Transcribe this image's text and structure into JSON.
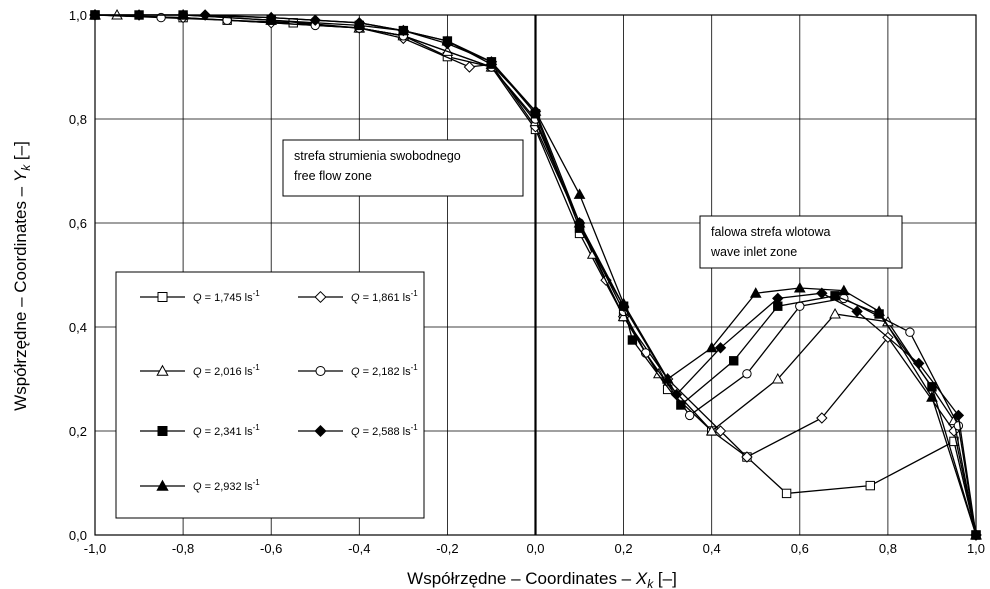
{
  "chart_data": {
    "type": "line",
    "xlabel": {
      "main": "Współrzędne – Coordinates – ",
      "var": "X",
      "sub": "k",
      "unit": "  [–]"
    },
    "ylabel": {
      "main": "Współrzędne – Coordinates – ",
      "var": "Y",
      "sub": "k",
      "unit": "  [–]"
    },
    "xlim": [
      -1.0,
      1.0
    ],
    "ylim": [
      0.0,
      1.0
    ],
    "xticks": [
      -1.0,
      -0.8,
      -0.6,
      -0.4,
      -0.2,
      0.0,
      0.2,
      0.4,
      0.6,
      0.8,
      1.0
    ],
    "yticks": [
      0.0,
      0.2,
      0.4,
      0.6,
      0.8,
      1.0
    ],
    "xtick_labels": [
      "-1,0",
      "-0,8",
      "-0,6",
      "-0,4",
      "-0,2",
      "0,0",
      "0,2",
      "0,4",
      "0,6",
      "0,8",
      "1,0"
    ],
    "ytick_labels": [
      "0,0",
      "0,2",
      "0,4",
      "0,6",
      "0,8",
      "1,0"
    ],
    "grid": true,
    "annotations": [
      {
        "lines": [
          "strefa  strumienia swobodnego",
          "free flow zone"
        ]
      },
      {
        "lines": [
          "falowa strefa wlotowa",
          "wave inlet zone"
        ]
      }
    ],
    "legend_placement": "lower-left",
    "series": [
      {
        "name": "Q = 1,745 ls-1",
        "label_var": "Q",
        "label_val": " = 1,745 ls",
        "label_sup": "-1",
        "marker": "square-open",
        "x": [
          -1.0,
          -0.8,
          -0.7,
          -0.55,
          -0.4,
          -0.3,
          -0.2,
          -0.1,
          0.0,
          0.1,
          0.2,
          0.3,
          0.4,
          0.48,
          0.57,
          0.76,
          0.95,
          1.0
        ],
        "y": [
          1.0,
          0.995,
          0.99,
          0.985,
          0.975,
          0.96,
          0.92,
          0.9,
          0.78,
          0.58,
          0.42,
          0.28,
          0.2,
          0.15,
          0.08,
          0.095,
          0.18,
          0.0
        ]
      },
      {
        "name": "Q = 1,861 ls-1",
        "label_var": "Q",
        "label_val": " = 1,861 ls",
        "label_sup": "-1",
        "marker": "diamond-open",
        "x": [
          -1.0,
          -0.8,
          -0.6,
          -0.4,
          -0.3,
          -0.15,
          -0.1,
          0.0,
          0.1,
          0.16,
          0.2,
          0.3,
          0.42,
          0.48,
          0.65,
          0.8,
          0.95,
          1.0
        ],
        "y": [
          1.0,
          0.995,
          0.985,
          0.975,
          0.955,
          0.9,
          0.905,
          0.785,
          0.6,
          0.49,
          0.42,
          0.3,
          0.2,
          0.15,
          0.225,
          0.38,
          0.2,
          0.0
        ]
      },
      {
        "name": "Q = 2,016 ls-1",
        "label_var": "Q",
        "label_val": " = 2,016 ls",
        "label_sup": "-1",
        "marker": "triangle-open",
        "x": [
          -1.0,
          -0.95,
          -0.8,
          -0.6,
          -0.4,
          -0.3,
          -0.2,
          -0.1,
          0.0,
          0.1,
          0.13,
          0.2,
          0.28,
          0.4,
          0.55,
          0.68,
          0.8,
          0.95,
          1.0
        ],
        "y": [
          1.0,
          1.0,
          1.0,
          0.99,
          0.975,
          0.96,
          0.93,
          0.9,
          0.795,
          0.6,
          0.54,
          0.42,
          0.31,
          0.2,
          0.3,
          0.425,
          0.41,
          0.22,
          0.0
        ]
      },
      {
        "name": "Q = 2,182 ls-1",
        "label_var": "Q",
        "label_val": " = 2,182 ls",
        "label_sup": "-1",
        "marker": "circle-open",
        "x": [
          -1.0,
          -0.85,
          -0.7,
          -0.5,
          -0.4,
          -0.3,
          -0.1,
          0.0,
          0.1,
          0.2,
          0.25,
          0.35,
          0.48,
          0.6,
          0.7,
          0.85,
          0.96,
          1.0
        ],
        "y": [
          1.0,
          0.995,
          0.99,
          0.98,
          0.975,
          0.96,
          0.9,
          0.8,
          0.6,
          0.43,
          0.35,
          0.23,
          0.31,
          0.44,
          0.455,
          0.39,
          0.21,
          0.0
        ]
      },
      {
        "name": "Q = 2,341 ls-1",
        "label_var": "Q",
        "label_val": " = 2,341 ls",
        "label_sup": "-1",
        "marker": "square-filled",
        "x": [
          -1.0,
          -0.9,
          -0.8,
          -0.6,
          -0.4,
          -0.3,
          -0.2,
          -0.1,
          0.0,
          0.1,
          0.2,
          0.22,
          0.33,
          0.45,
          0.55,
          0.68,
          0.78,
          0.9,
          1.0
        ],
        "y": [
          1.0,
          1.0,
          1.0,
          0.99,
          0.98,
          0.97,
          0.95,
          0.91,
          0.81,
          0.59,
          0.44,
          0.375,
          0.25,
          0.335,
          0.44,
          0.46,
          0.425,
          0.285,
          0.0
        ]
      },
      {
        "name": "Q = 2,588 ls-1",
        "label_var": "Q",
        "label_val": " = 2,588 ls",
        "label_sup": "-1",
        "marker": "diamond-filled",
        "x": [
          -1.0,
          -0.9,
          -0.75,
          -0.6,
          -0.5,
          -0.4,
          -0.3,
          -0.2,
          -0.1,
          0.0,
          0.1,
          0.2,
          0.32,
          0.42,
          0.55,
          0.65,
          0.73,
          0.87,
          0.96,
          1.0
        ],
        "y": [
          1.0,
          1.0,
          1.0,
          0.995,
          0.99,
          0.985,
          0.97,
          0.945,
          0.91,
          0.815,
          0.6,
          0.44,
          0.27,
          0.36,
          0.455,
          0.465,
          0.43,
          0.33,
          0.23,
          0.0
        ]
      },
      {
        "name": "Q = 2,932 ls-1",
        "label_var": "Q",
        "label_val": " = 2,932 ls",
        "label_sup": "-1",
        "marker": "triangle-filled",
        "x": [
          -1.0,
          -0.8,
          -0.6,
          -0.4,
          -0.3,
          -0.2,
          -0.1,
          0.0,
          0.1,
          0.2,
          0.3,
          0.4,
          0.5,
          0.6,
          0.7,
          0.78,
          0.9,
          1.0
        ],
        "y": [
          1.0,
          1.0,
          0.995,
          0.985,
          0.97,
          0.95,
          0.905,
          0.815,
          0.655,
          0.445,
          0.3,
          0.36,
          0.465,
          0.475,
          0.47,
          0.43,
          0.265,
          0.0
        ]
      }
    ]
  }
}
